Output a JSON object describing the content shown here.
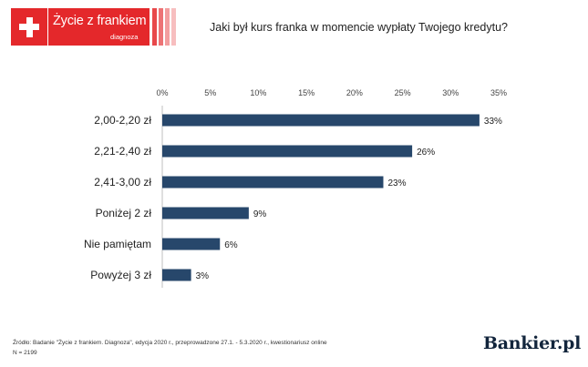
{
  "logo": {
    "title": "Życie z frankiem",
    "subtitle": "diagnoza"
  },
  "question": "Jaki był kurs franka w momencie wypłaty Twojego kredytu?",
  "colors": {
    "brand_red": "#e4282b",
    "bar": "#27476b",
    "brand_navy": "#12253c"
  },
  "chart_data": {
    "type": "bar",
    "orientation": "horizontal",
    "categories": [
      "2,00-2,20 zł",
      "2,21-2,40 zł",
      "2,41-3,00 zł",
      "Poniżej 2 zł",
      "Nie pamiętam",
      "Powyżej 3 zł"
    ],
    "values": [
      33,
      26,
      23,
      9,
      6,
      3
    ],
    "value_labels": [
      "33%",
      "26%",
      "23%",
      "9%",
      "6%",
      "3%"
    ],
    "xlim": [
      0,
      35
    ],
    "xticks": [
      0,
      5,
      10,
      15,
      20,
      25,
      30,
      35
    ],
    "xtick_labels": [
      "0%",
      "5%",
      "10%",
      "15%",
      "20%",
      "25%",
      "30%",
      "35%"
    ],
    "axis_position": "top",
    "grid": false
  },
  "footer": {
    "source": "Źródło: Badanie \"Życie z frankiem. Diagnoza\", edycja 2020 r., przeprowadzone 27.1. - 5.3.2020 r., kwestionariusz online",
    "sample": "N = 2199",
    "brand": "Bankier.pl"
  }
}
